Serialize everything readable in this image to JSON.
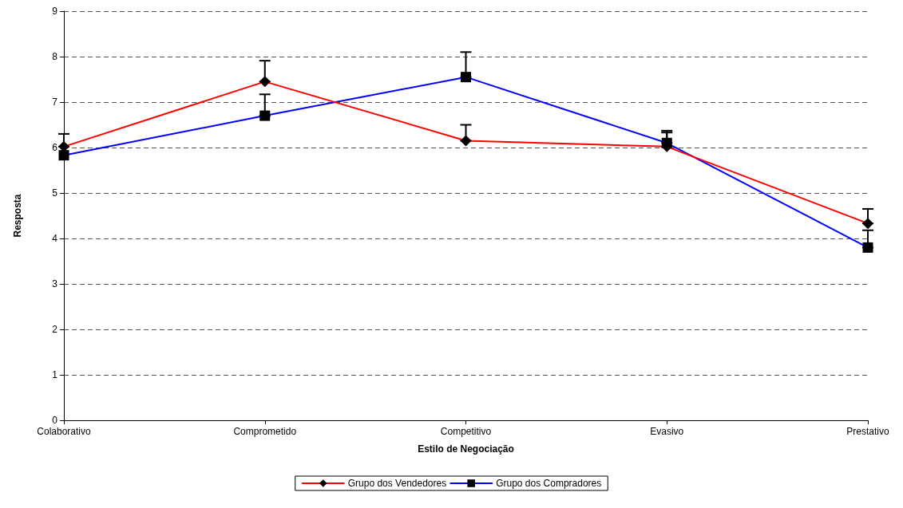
{
  "chart_data": {
    "type": "line",
    "xlabel": "Estilo de Negociação",
    "ylabel": "Resposta",
    "categories": [
      "Colaborativo",
      "Comprometido",
      "Competitivo",
      "Evasivo",
      "Prestativo"
    ],
    "series": [
      {
        "name": "Grupo dos Vendedores",
        "color": "#ff0000",
        "marker": "diamond",
        "values": [
          6.02,
          7.45,
          6.15,
          6.02,
          4.33
        ],
        "errors": [
          [
            6.02,
            6.3
          ],
          [
            7.45,
            7.91
          ],
          [
            6.15,
            6.5
          ],
          [
            6.02,
            6.37
          ],
          [
            4.33,
            4.65
          ]
        ]
      },
      {
        "name": "Grupo dos Compradores",
        "color": "#0000ff",
        "marker": "square",
        "values": [
          5.83,
          6.7,
          7.55,
          6.1,
          3.8
        ],
        "errors": [
          null,
          [
            6.7,
            7.17
          ],
          [
            7.55,
            8.1
          ],
          [
            6.1,
            6.33
          ],
          [
            3.8,
            4.18
          ]
        ]
      }
    ],
    "ylim": [
      0,
      9
    ],
    "yticks": [
      0,
      1,
      2,
      3,
      4,
      5,
      6,
      7,
      8,
      9
    ],
    "grid": "y",
    "legend": "bottom",
    "line_style": "solid"
  }
}
